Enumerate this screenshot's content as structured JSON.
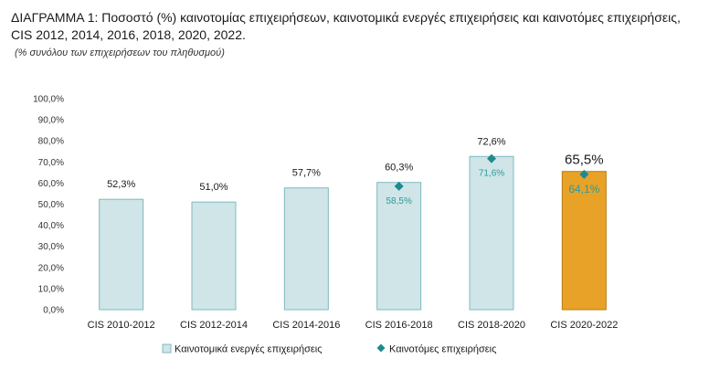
{
  "title": "ΔΙΑΓΡΑΜΜΑ 1: Ποσοστό (%) καινοτομίας επιχειρήσεων, καινοτομικά ενεργές επιχειρήσεις και καινοτόμες επιχειρήσεις, CIS 2012, 2014, 2016, 2018, 2020, 2022.",
  "subtitle": "(% συνόλου των επιχειρήσεων του πληθυσμού)",
  "colors": {
    "bar": "#cfe5e8",
    "bar_border": "#7fb9c0",
    "bar_highlight": "#e8a228",
    "bar_highlight_border": "#b87b10",
    "marker": "#1e8a8f",
    "axis_text": "#333333",
    "inner_label": "#2e9a9a"
  },
  "chart_data": {
    "type": "bar",
    "categories": [
      "CIS 2010-2012",
      "CIS 2012-2014",
      "CIS 2014-2016",
      "CIS 2016-2018",
      "CIS 2018-2020",
      "CIS 2020-2022"
    ],
    "series": [
      {
        "name": "Καινοτομικά ενεργές επιχειρήσεις",
        "type": "bar",
        "values": [
          52.3,
          51.0,
          57.7,
          60.3,
          72.6,
          65.5
        ],
        "labels": [
          "52,3%",
          "51,0%",
          "57,7%",
          "60,3%",
          "72,6%",
          "65,5%"
        ]
      },
      {
        "name": "Καινοτόμες επιχειρήσεις",
        "type": "marker",
        "values": [
          null,
          null,
          null,
          58.5,
          71.6,
          64.1
        ],
        "labels": [
          "",
          "",
          "",
          "58,5%",
          "71,6%",
          "64,1%"
        ]
      }
    ],
    "y_ticks": [
      "0,0%",
      "10,0%",
      "20,0%",
      "30,0%",
      "40,0%",
      "50,0%",
      "60,0%",
      "70,0%",
      "80,0%",
      "90,0%",
      "100,0%"
    ],
    "ylim": [
      0,
      100
    ],
    "highlight_index": 5,
    "legend_position": "bottom",
    "grid": false
  }
}
